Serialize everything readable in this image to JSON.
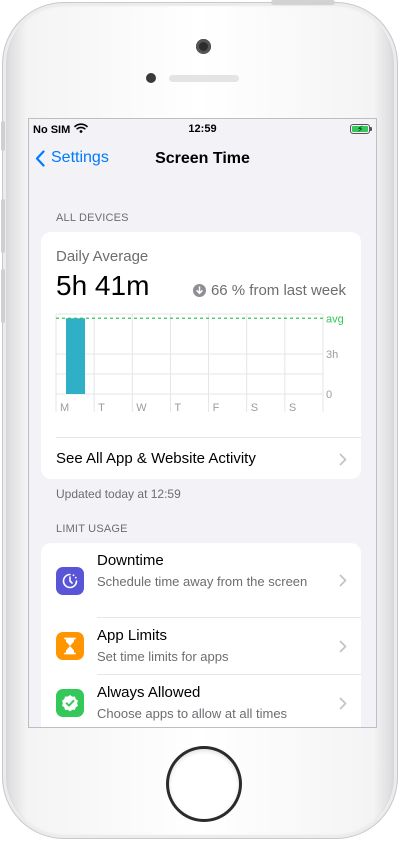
{
  "status_bar": {
    "carrier": "No SIM",
    "time": "12:59"
  },
  "nav": {
    "back_label": "Settings",
    "title": "Screen Time"
  },
  "all_devices": {
    "header": "ALL DEVICES",
    "daily_label": "Daily Average",
    "daily_value": "5h 41m",
    "change_text": "66 % from last week",
    "chart": {
      "days": [
        "M",
        "T",
        "W",
        "T",
        "F",
        "S",
        "S"
      ],
      "values_hours": [
        5.68,
        0,
        0,
        0,
        0,
        0,
        0
      ],
      "average_hours": 5.68,
      "avg_label": "avg",
      "tick_labels": [
        "3h",
        "0"
      ],
      "bar_color": "#30b0c7",
      "avg_color": "#34c759"
    },
    "see_all_label": "See All App & Website Activity",
    "updated_text": "Updated today at 12:59"
  },
  "limit_usage": {
    "header": "LIMIT USAGE",
    "items": [
      {
        "title": "Downtime",
        "subtitle": "Schedule time away from the screen",
        "icon": "downtime-icon",
        "color": "#5856d6"
      },
      {
        "title": "App Limits",
        "subtitle": "Set time limits for apps",
        "icon": "hourglass-icon",
        "color": "#ff9500"
      },
      {
        "title": "Always Allowed",
        "subtitle": "Choose apps to allow at all times",
        "icon": "checkmark-seal-icon",
        "color": "#34c759"
      }
    ]
  }
}
